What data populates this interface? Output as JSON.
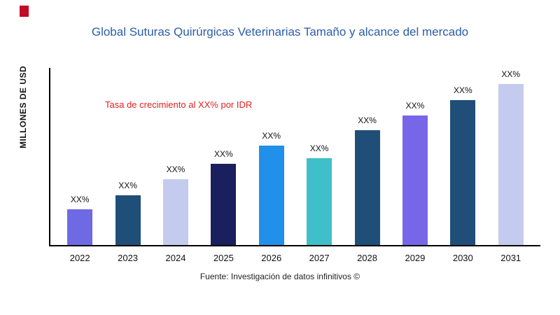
{
  "logo": {
    "color": "#c00a27"
  },
  "header": {
    "title": "Global Suturas Quirúrgicas Veterinarias Tamaño y alcance del mercado",
    "color": "#2b5ca8"
  },
  "chart_data": {
    "type": "bar",
    "title": "Global Suturas Quirúrgicas Veterinarias Tamaño y alcance del mercado",
    "xlabel": "",
    "ylabel": "MILLONES DE USD",
    "categories": [
      "2022",
      "2023",
      "2024",
      "2025",
      "2026",
      "2027",
      "2028",
      "2029",
      "2030",
      "2031"
    ],
    "values": [
      20,
      28,
      37,
      46,
      56,
      49,
      65,
      73,
      82,
      91
    ],
    "ylim": [
      0,
      100
    ],
    "grid": false,
    "legend": false,
    "bar_labels": [
      "XX%",
      "XX%",
      "XX%",
      "XX%",
      "XX%",
      "XX%",
      "XX%",
      "XX%",
      "XX%",
      "XX%"
    ],
    "bar_colors": [
      "#6d6ae4",
      "#1f4e79",
      "#c5cbee",
      "#1a1f5e",
      "#2090ea",
      "#3fbfc9",
      "#1f4e79",
      "#7766e8",
      "#1f4e79",
      "#c5cbee"
    ],
    "annotation": {
      "text": "Tasa de crecimiento al XX% por IDR",
      "color": "#e02020"
    }
  },
  "footer": {
    "source": "Fuente: Investigación de datos infinitivos ©"
  }
}
